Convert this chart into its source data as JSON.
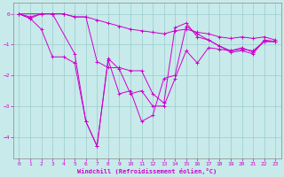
{
  "xlabel": "Windchill (Refroidissement éolien,°C)",
  "ylabel": "",
  "bg_color": "#c8eaea",
  "line_color": "#cc00cc",
  "grid_color": "#99cccc",
  "axis_color": "#888888",
  "xlim": [
    -0.5,
    23.5
  ],
  "ylim": [
    -4.7,
    0.35
  ],
  "yticks": [
    0,
    -1,
    -2,
    -3,
    -4
  ],
  "xticks": [
    0,
    1,
    2,
    3,
    4,
    5,
    6,
    7,
    8,
    9,
    10,
    11,
    12,
    13,
    14,
    15,
    16,
    17,
    18,
    19,
    20,
    21,
    22,
    23
  ],
  "series": [
    {
      "x": [
        0,
        1,
        2,
        3,
        4,
        5,
        6,
        7,
        8,
        9,
        10,
        11,
        12,
        13,
        14,
        15,
        16,
        17,
        18,
        19,
        20,
        21,
        22,
        23
      ],
      "y": [
        0.0,
        -0.1,
        0.0,
        0.0,
        0.0,
        -0.1,
        -0.1,
        -0.2,
        -0.3,
        -0.4,
        -0.5,
        -0.55,
        -0.6,
        -0.65,
        -0.55,
        -0.5,
        -0.6,
        -0.65,
        -0.75,
        -0.8,
        -0.75,
        -0.8,
        -0.75,
        -0.85
      ]
    },
    {
      "x": [
        0,
        1,
        2,
        3,
        5,
        6,
        7,
        8,
        9,
        10,
        11,
        12,
        13,
        14,
        15,
        16,
        17,
        18,
        19,
        20,
        21,
        22,
        23
      ],
      "y": [
        0.0,
        -0.15,
        0.0,
        0.0,
        -1.3,
        -3.5,
        -4.3,
        -1.45,
        -1.8,
        -2.6,
        -2.5,
        -3.0,
        -3.0,
        -2.1,
        -1.2,
        -1.6,
        -1.1,
        -1.15,
        -1.2,
        -1.15,
        -1.2,
        -0.9,
        -0.9
      ]
    },
    {
      "x": [
        0,
        1,
        2,
        3,
        4,
        5,
        6,
        7,
        8,
        9,
        10,
        11,
        12,
        13,
        14,
        15,
        16,
        17,
        18,
        19,
        20,
        21,
        22,
        23
      ],
      "y": [
        0.0,
        -0.15,
        -0.5,
        -1.4,
        -1.4,
        -1.6,
        -3.5,
        -4.3,
        -1.5,
        -2.6,
        -2.5,
        -3.5,
        -3.3,
        -2.1,
        -2.0,
        -0.4,
        -0.65,
        -0.85,
        -1.05,
        -1.2,
        -1.1,
        -1.25,
        -0.9,
        -0.9
      ]
    },
    {
      "x": [
        0,
        2,
        3,
        4,
        5,
        6,
        7,
        8,
        9,
        10,
        11,
        12,
        13,
        14,
        15,
        16,
        17,
        18,
        19,
        20,
        21,
        22,
        23
      ],
      "y": [
        0.0,
        0.0,
        0.0,
        0.0,
        -0.1,
        -0.1,
        -1.55,
        -1.75,
        -1.75,
        -1.85,
        -1.85,
        -2.6,
        -2.9,
        -0.45,
        -0.3,
        -0.75,
        -0.85,
        -1.05,
        -1.25,
        -1.2,
        -1.3,
        -0.85,
        -0.9
      ]
    }
  ]
}
